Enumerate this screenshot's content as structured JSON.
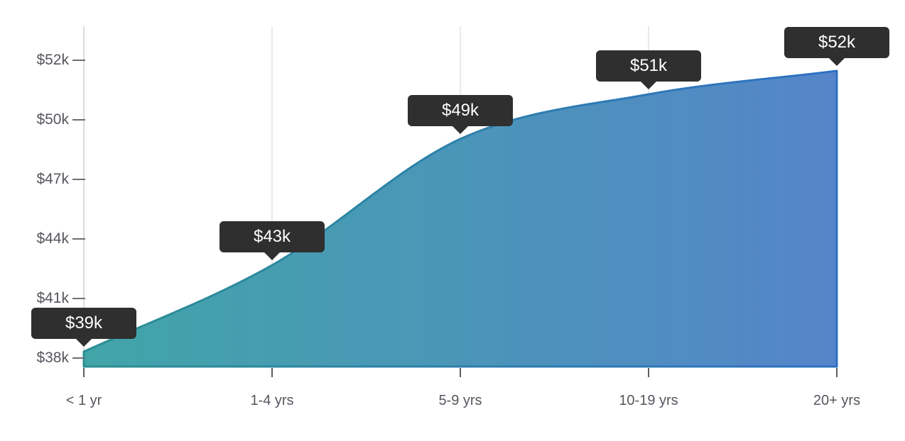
{
  "chart_data": {
    "type": "area",
    "categories": [
      "< 1 yr",
      "1-4 yrs",
      "5-9 yrs",
      "10-19 yrs",
      "20+ yrs"
    ],
    "values": [
      39000,
      43000,
      49000,
      51000,
      52000
    ],
    "point_labels": [
      "$39k",
      "$43k",
      "$49k",
      "$51k",
      "$52k"
    ],
    "ytick_labels": [
      "$38k",
      "$41k",
      "$44k",
      "$47k",
      "$50k",
      "$52k"
    ],
    "xlabel": "",
    "ylabel": "",
    "ylim": [
      38000,
      52000
    ],
    "grid": "vertical-gridlines-only",
    "legend": "none",
    "series_name": "salary-by-experience",
    "colors": {
      "fill_gradient_start": "#41a5a8",
      "fill_gradient_end": "#5585c9",
      "stroke_gradient_start": "#2b8f93",
      "stroke_gradient_end": "#2e70c3",
      "tooltip_bg": "#2f2f2f",
      "tooltip_text": "#ffffff",
      "axis_text": "#55575f",
      "gridline": "#e9e9e9",
      "axis_line": "#dcdcdc"
    }
  }
}
